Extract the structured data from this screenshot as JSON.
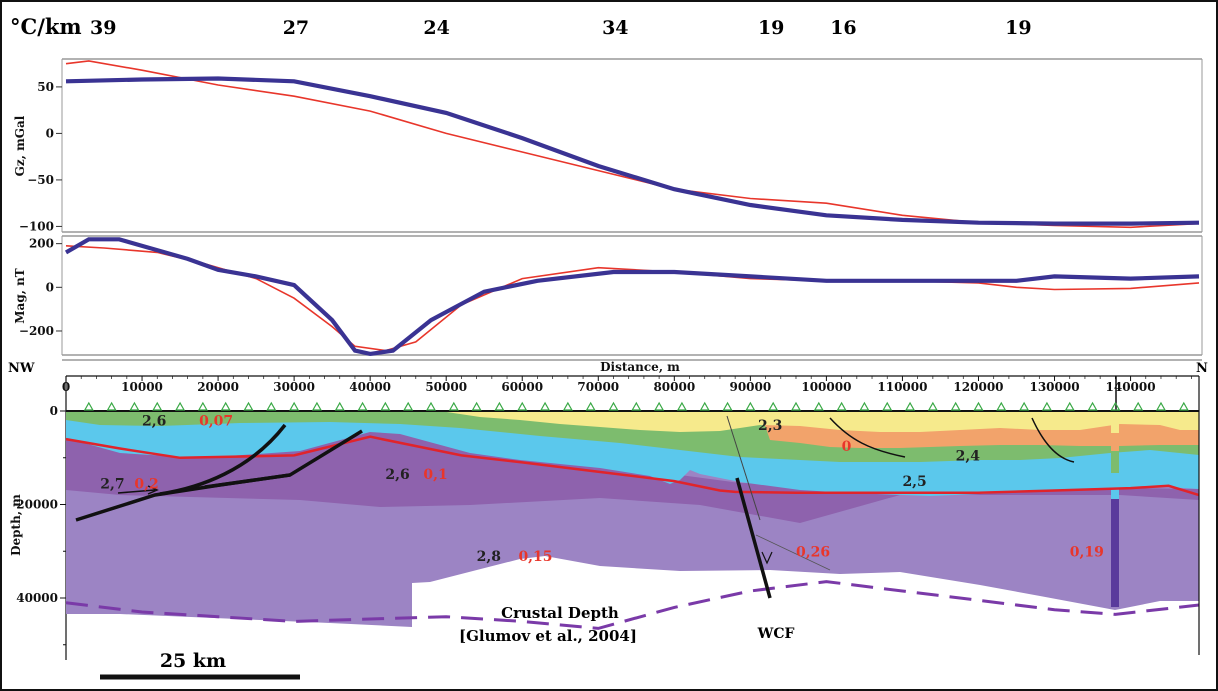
{
  "colors": {
    "observed": "#3a3393",
    "model": "#e8362b",
    "lower_crust": "#9c84c4",
    "mid_crust": "#8e62ad",
    "upper_basement": "#5bc8ec",
    "green_layer": "#7dbc6e",
    "orange_layer": "#f2a36b",
    "yellow_layer": "#f6ea8c",
    "moho_line": "#7a3aa8",
    "boundary": "#e0242b"
  },
  "thermal": {
    "unit": "°C/km",
    "values": [
      {
        "label": "39",
        "x": 0
      },
      {
        "label": "27",
        "x": 28500
      },
      {
        "label": "24",
        "x": 47000
      },
      {
        "label": "34",
        "x": 70500
      },
      {
        "label": "19",
        "x": 91000
      },
      {
        "label": "16",
        "x": 100500
      },
      {
        "label": "19",
        "x": 123500
      }
    ]
  },
  "chart_data": [
    {
      "type": "line",
      "ylabel": "Gz, mGal",
      "xlim": [
        0,
        149000
      ],
      "ylim": [
        -106,
        80
      ],
      "yticks": [
        "50",
        "0",
        "−50",
        "−100"
      ],
      "ytick_values": [
        50,
        0,
        -50,
        -100
      ],
      "series": [
        {
          "role": "observed",
          "x": [
            0,
            10000,
            20000,
            30000,
            40000,
            50000,
            60000,
            70000,
            80000,
            90000,
            100000,
            110000,
            120000,
            130000,
            140000,
            149000
          ],
          "values": [
            56,
            58,
            59,
            56,
            40,
            22,
            -5,
            -35,
            -60,
            -77,
            -88,
            -93,
            -96,
            -97,
            -97,
            -96
          ]
        },
        {
          "role": "model",
          "x": [
            0,
            3000,
            10000,
            20000,
            30000,
            40000,
            50000,
            60000,
            70000,
            80000,
            90000,
            100000,
            110000,
            120000,
            130000,
            140000,
            149000
          ],
          "values": [
            75,
            78,
            68,
            52,
            40,
            24,
            0,
            -20,
            -40,
            -60,
            -70,
            -75,
            -88,
            -96,
            -99,
            -101,
            -97
          ]
        }
      ]
    },
    {
      "type": "line",
      "ylabel": "Mag, nT",
      "xlim": [
        0,
        149000
      ],
      "ylim": [
        -310,
        235
      ],
      "yticks": [
        "200",
        "0",
        "−200"
      ],
      "ytick_values": [
        200,
        0,
        -200
      ],
      "series": [
        {
          "role": "observed",
          "x": [
            0,
            3000,
            7000,
            11000,
            16000,
            20000,
            25000,
            30000,
            35000,
            38000,
            40000,
            43000,
            48000,
            55000,
            62000,
            72000,
            80000,
            90000,
            100000,
            110000,
            120000,
            125000,
            130000,
            140000,
            149000
          ],
          "values": [
            160,
            220,
            220,
            180,
            130,
            80,
            50,
            10,
            -150,
            -290,
            -305,
            -290,
            -150,
            -20,
            30,
            70,
            70,
            50,
            30,
            30,
            30,
            30,
            50,
            40,
            50
          ]
        },
        {
          "role": "model",
          "x": [
            0,
            5000,
            12000,
            18000,
            25000,
            30000,
            35000,
            38000,
            42000,
            46000,
            52000,
            60000,
            70000,
            80000,
            90000,
            100000,
            110000,
            120000,
            125000,
            130000,
            140000,
            149000
          ],
          "values": [
            190,
            180,
            160,
            110,
            40,
            -50,
            -180,
            -270,
            -290,
            -250,
            -80,
            40,
            90,
            70,
            40,
            30,
            30,
            20,
            0,
            -10,
            -5,
            20
          ]
        }
      ]
    },
    {
      "type": "area",
      "xlabel": "Distance, m",
      "ylabel": "Depth, m",
      "xlim": [
        0,
        149000
      ],
      "ylim": [
        52000,
        -2000
      ],
      "xticks": [
        "0",
        "10000",
        "20000",
        "30000",
        "40000",
        "50000",
        "60000",
        "70000",
        "80000",
        "90000",
        "100000",
        "110000",
        "120000",
        "130000",
        "140000"
      ],
      "xtick_values": [
        0,
        10000,
        20000,
        30000,
        40000,
        50000,
        60000,
        70000,
        80000,
        90000,
        100000,
        110000,
        120000,
        130000,
        140000
      ],
      "yticks": [
        "0",
        "20000",
        "40000"
      ],
      "ytick_values": [
        0,
        20000,
        40000
      ],
      "edge_left": "NW",
      "edge_right": "N",
      "moho": {
        "label": "Crustal Depth",
        "ref": "[Glumov et al., 2004]",
        "x": [
          0,
          10000,
          20000,
          30000,
          40000,
          50000,
          60000,
          70000,
          80000,
          90000,
          100000,
          110000,
          120000,
          130000,
          138000,
          149000
        ],
        "values": [
          41000,
          43000,
          44000,
          45000,
          44500,
          44000,
          45000,
          46500,
          42000,
          38500,
          36500,
          38500,
          40500,
          42500,
          43500,
          41500
        ]
      },
      "boundary": {
        "x": [
          0,
          7000,
          15000,
          30000,
          40000,
          52000,
          60000,
          70000,
          80000,
          86000,
          88000,
          96000,
          108000,
          120000,
          130000,
          140000,
          145000,
          149000
        ],
        "values": [
          6000,
          8000,
          10000,
          9500,
          5500,
          9500,
          11000,
          13000,
          15000,
          17000,
          17300,
          17500,
          17500,
          17500,
          17000,
          16500,
          16000,
          18000
        ]
      },
      "faults": {
        "label": "WCF"
      },
      "layer_labels": [
        {
          "t": "2,6",
          "x": 10000,
          "y": 2000,
          "c": "k"
        },
        {
          "t": "0,07",
          "x": 17500,
          "y": 2000,
          "c": "r"
        },
        {
          "t": "2,7",
          "x": 4500,
          "y": 15500,
          "c": "k"
        },
        {
          "t": "0,2",
          "x": 9000,
          "y": 15500,
          "c": "r"
        },
        {
          "t": "2,6",
          "x": 42000,
          "y": 13500,
          "c": "k"
        },
        {
          "t": "0,1",
          "x": 47000,
          "y": 13500,
          "c": "r"
        },
        {
          "t": "2,8",
          "x": 54000,
          "y": 31000,
          "c": "k"
        },
        {
          "t": "0,15",
          "x": 59500,
          "y": 31000,
          "c": "r"
        },
        {
          "t": "0,26",
          "x": 96000,
          "y": 30000,
          "c": "r"
        },
        {
          "t": "0,19",
          "x": 132000,
          "y": 30000,
          "c": "r"
        },
        {
          "t": "2,3",
          "x": 91000,
          "y": 3000,
          "c": "k"
        },
        {
          "t": "0",
          "x": 102000,
          "y": 7500,
          "c": "r"
        },
        {
          "t": "2,4",
          "x": 117000,
          "y": 9500,
          "c": "k"
        },
        {
          "t": "2,5",
          "x": 110000,
          "y": 15000,
          "c": "k"
        }
      ],
      "scalebar": {
        "label": "25 km"
      }
    }
  ]
}
